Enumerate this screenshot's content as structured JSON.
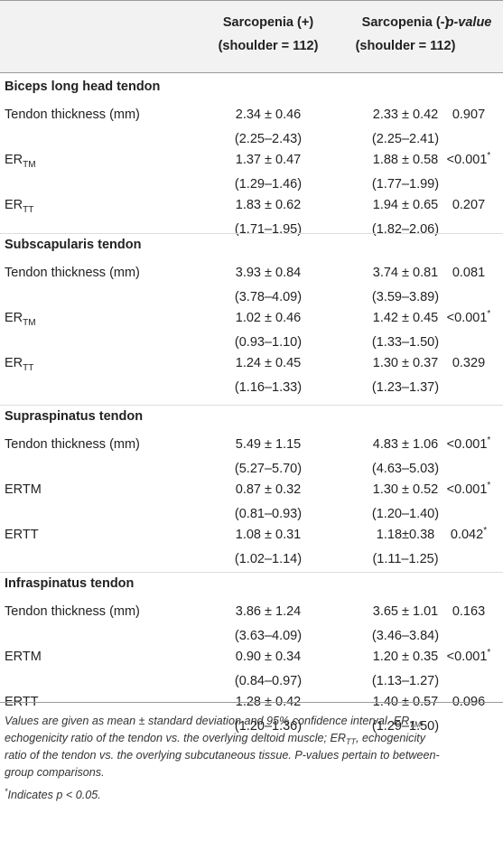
{
  "header": {
    "col1_line1": "Sarcopenia (+)",
    "col1_line2": "(shoulder = 112)",
    "col2_line1": "Sarcopenia (-)",
    "col2_line2": "(shoulder = 112)",
    "col3": "p-value"
  },
  "sections": [
    {
      "title": "Biceps long head tendon",
      "rows": [
        {
          "label": "Tendon thickness (mm)",
          "label_base": "",
          "label_sub": "",
          "plus_mean": "2.34 ± 0.46",
          "plus_ci": "(2.25–2.43)",
          "minus_mean": "2.33 ± 0.42",
          "minus_ci": "(2.25–2.41)",
          "p": "0.907",
          "p_star": ""
        },
        {
          "label": "",
          "label_base": "ER",
          "label_sub": "TM",
          "plus_mean": "1.37 ± 0.47",
          "plus_ci": "(1.29–1.46)",
          "minus_mean": "1.88 ± 0.58",
          "minus_ci": "(1.77–1.99)",
          "p": "<0.001",
          "p_star": "*"
        },
        {
          "label": "",
          "label_base": "ER",
          "label_sub": "TT",
          "plus_mean": "1.83 ± 0.62",
          "plus_ci": "(1.71–1.95)",
          "minus_mean": "1.94 ± 0.65",
          "minus_ci": "(1.82–2.06)",
          "p": "0.207",
          "p_star": ""
        }
      ]
    },
    {
      "title": "Subscapularis tendon",
      "rows": [
        {
          "label": "Tendon thickness (mm)",
          "label_base": "",
          "label_sub": "",
          "plus_mean": "3.93 ± 0.84",
          "plus_ci": "(3.78–4.09)",
          "minus_mean": "3.74 ± 0.81",
          "minus_ci": "(3.59–3.89)",
          "p": "0.081",
          "p_star": ""
        },
        {
          "label": "",
          "label_base": "ER",
          "label_sub": "TM",
          "plus_mean": "1.02 ± 0.46",
          "plus_ci": "(0.93–1.10)",
          "minus_mean": "1.42 ± 0.45",
          "minus_ci": "(1.33–1.50)",
          "p": "<0.001",
          "p_star": "*"
        },
        {
          "label": "",
          "label_base": "ER",
          "label_sub": "TT",
          "plus_mean": "1.24 ± 0.45",
          "plus_ci": "(1.16–1.33)",
          "minus_mean": "1.30 ± 0.37",
          "minus_ci": "(1.23–1.37)",
          "p": "0.329",
          "p_star": ""
        }
      ]
    },
    {
      "title": "Supraspinatus tendon",
      "rows": [
        {
          "label": "Tendon thickness (mm)",
          "label_base": "",
          "label_sub": "",
          "plus_mean": "5.49 ± 1.15",
          "plus_ci": "(5.27–5.70)",
          "minus_mean": "4.83 ± 1.06",
          "minus_ci": "(4.63–5.03)",
          "p": "<0.001",
          "p_star": "*"
        },
        {
          "label": "ERTM",
          "label_base": "",
          "label_sub": "",
          "plus_mean": "0.87 ± 0.32",
          "plus_ci": "(0.81–0.93)",
          "minus_mean": "1.30 ± 0.52",
          "minus_ci": "(1.20–1.40)",
          "p": "<0.001",
          "p_star": "*"
        },
        {
          "label": "ERTT",
          "label_base": "",
          "label_sub": "",
          "plus_mean": "1.08 ± 0.31",
          "plus_ci": "(1.02–1.14)",
          "minus_mean": "1.18±0.38",
          "minus_ci": "(1.11–1.25)",
          "p": "0.042",
          "p_star": "*"
        }
      ]
    },
    {
      "title": "Infraspinatus tendon",
      "rows": [
        {
          "label": "Tendon thickness (mm)",
          "label_base": "",
          "label_sub": "",
          "plus_mean": "3.86 ± 1.24",
          "plus_ci": "(3.63–4.09)",
          "minus_mean": "3.65 ± 1.01",
          "minus_ci": "(3.46–3.84)",
          "p": "0.163",
          "p_star": ""
        },
        {
          "label": "ERTM",
          "label_base": "",
          "label_sub": "",
          "plus_mean": "0.90 ± 0.34",
          "plus_ci": "(0.84–0.97)",
          "minus_mean": "1.20 ± 0.35",
          "minus_ci": "(1.13–1.27)",
          "p": "<0.001",
          "p_star": "*"
        },
        {
          "label": "ERTT",
          "label_base": "",
          "label_sub": "",
          "plus_mean": "1.28 ± 0.42",
          "plus_ci": "(1.20–1.36)",
          "minus_mean": "1.40 ± 0.57",
          "minus_ci": "(1.29–1.50)",
          "p": "0.096",
          "p_star": ""
        }
      ]
    }
  ],
  "footnote": {
    "p1": "Values are given as mean ± standard deviation and 95% confidence interval. ",
    "er1_base": "ER",
    "er1_sub": "TM",
    "p2": ",",
    "line2a": "echogenicity ratio of the tendon vs. the overlying deltoid muscle; ",
    "er2_base": "ER",
    "er2_sub": "TT",
    "p3": ", echogenicity",
    "line3": "ratio of the tendon vs. the overlying subcutaneous tissue. P-values pertain to between-",
    "line4": "group comparisons.",
    "star_mark": "*",
    "star_text": "Indicates p < 0.05."
  }
}
